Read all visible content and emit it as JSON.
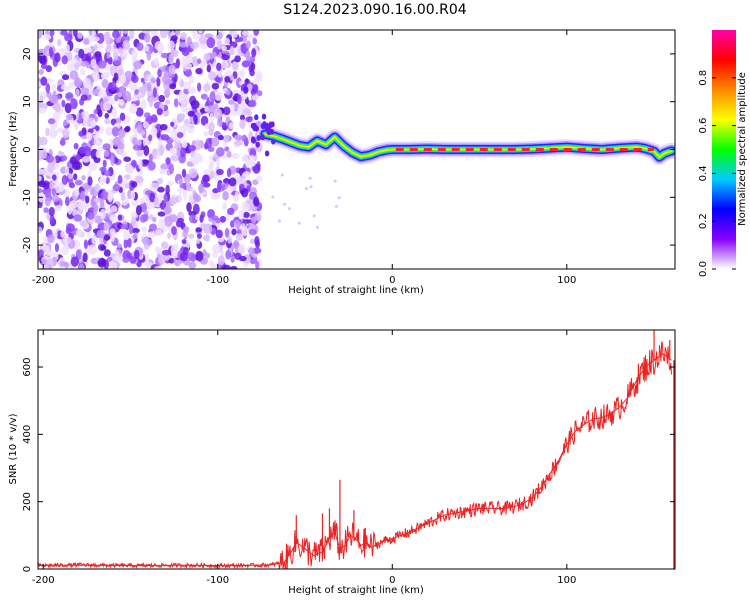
{
  "title": "S124.2023.090.16.00.R04",
  "chart_data": [
    {
      "type": "heatmap",
      "name": "spectrogram",
      "xlabel": "Height of straight line (km)",
      "ylabel": "Frequency (Hz)",
      "xlim": [
        -203,
        162
      ],
      "ylim": [
        -25,
        25
      ],
      "xticks": [
        -200,
        -100,
        0,
        100
      ],
      "xtick_labels": [
        "-200",
        "-100",
        "0",
        "100"
      ],
      "yticks": [
        -20,
        -10,
        0,
        10,
        20
      ],
      "ytick_labels": [
        "-20",
        "-10",
        "0",
        "10",
        "20"
      ],
      "noise_region_x": [
        -203,
        -76
      ],
      "signal_start_x": -76,
      "frequency_trace": {
        "x": [
          -73,
          -68,
          -63,
          -58,
          -53,
          -48,
          -43,
          -38,
          -33,
          -28,
          -23,
          -18,
          -13,
          -8,
          -3,
          0,
          10,
          20,
          30,
          40,
          50,
          60,
          70,
          80,
          90,
          100,
          110,
          120,
          130,
          140,
          145,
          150,
          153,
          156,
          160
        ],
        "y": [
          3.2,
          2.8,
          2.2,
          1.5,
          0.8,
          0.5,
          1.8,
          1.0,
          2.6,
          0.8,
          -0.6,
          -1.5,
          -1.2,
          -0.5,
          -0.1,
          0.0,
          0.0,
          0.1,
          0.0,
          0.0,
          0.0,
          0.0,
          0.0,
          0.1,
          0.3,
          0.5,
          0.2,
          0.0,
          0.3,
          0.5,
          0.2,
          -0.4,
          -1.6,
          -0.8,
          -0.3
        ]
      },
      "colorbar": {
        "label": "Normalized spectral amplitude",
        "range": [
          0,
          1
        ],
        "ticks": [
          0.0,
          0.2,
          0.4,
          0.6,
          0.8
        ],
        "tick_labels": [
          "0.0",
          "0.2",
          "0.4",
          "0.6",
          "0.8"
        ],
        "colors": [
          "#ffffff",
          "#8800ff",
          "#0000ff",
          "#00ccff",
          "#00ff00",
          "#ffff00",
          "#ff8800",
          "#ff0000",
          "#ff00aa"
        ]
      }
    },
    {
      "type": "line",
      "name": "snr",
      "xlabel": "Height of straight line (km)",
      "ylabel": "SNR (10 * v/v)",
      "xlim": [
        -203,
        162
      ],
      "ylim": [
        0,
        710
      ],
      "xticks": [
        -200,
        -100,
        0,
        100
      ],
      "xtick_labels": [
        "-200",
        "-100",
        "0",
        "100"
      ],
      "yticks": [
        0,
        200,
        400,
        600
      ],
      "ytick_labels": [
        "0",
        "200",
        "400",
        "600"
      ],
      "color": "#ee2222",
      "series": [
        {
          "name": "SNR",
          "x": [
            -203,
            -180,
            -150,
            -120,
            -90,
            -70,
            -62,
            -58,
            -55,
            -50,
            -45,
            -40,
            -36,
            -33,
            -30,
            -27,
            -24,
            -21,
            -18,
            -15,
            -12,
            -8,
            -4,
            0,
            10,
            20,
            30,
            40,
            50,
            60,
            65,
            70,
            75,
            80,
            85,
            90,
            95,
            100,
            105,
            110,
            115,
            120,
            125,
            130,
            135,
            140,
            145,
            150,
            155,
            160
          ],
          "y": [
            10,
            12,
            10,
            11,
            10,
            12,
            20,
            50,
            80,
            60,
            40,
            50,
            90,
            110,
            60,
            70,
            100,
            90,
            70,
            80,
            65,
            75,
            85,
            90,
            110,
            135,
            160,
            170,
            180,
            180,
            180,
            185,
            195,
            210,
            240,
            280,
            320,
            370,
            410,
            430,
            445,
            450,
            460,
            480,
            510,
            560,
            600,
            620,
            640,
            620
          ],
          "spikes": [
            {
              "x": -55,
              "y": 160
            },
            {
              "x": -40,
              "y": 165
            },
            {
              "x": -36,
              "y": 180
            },
            {
              "x": -30,
              "y": 265
            },
            {
              "x": -22,
              "y": 175
            },
            {
              "x": -16,
              "y": 120
            },
            {
              "x": 150,
              "y": 710
            },
            {
              "x": 159,
              "y": 680
            }
          ]
        }
      ]
    }
  ]
}
